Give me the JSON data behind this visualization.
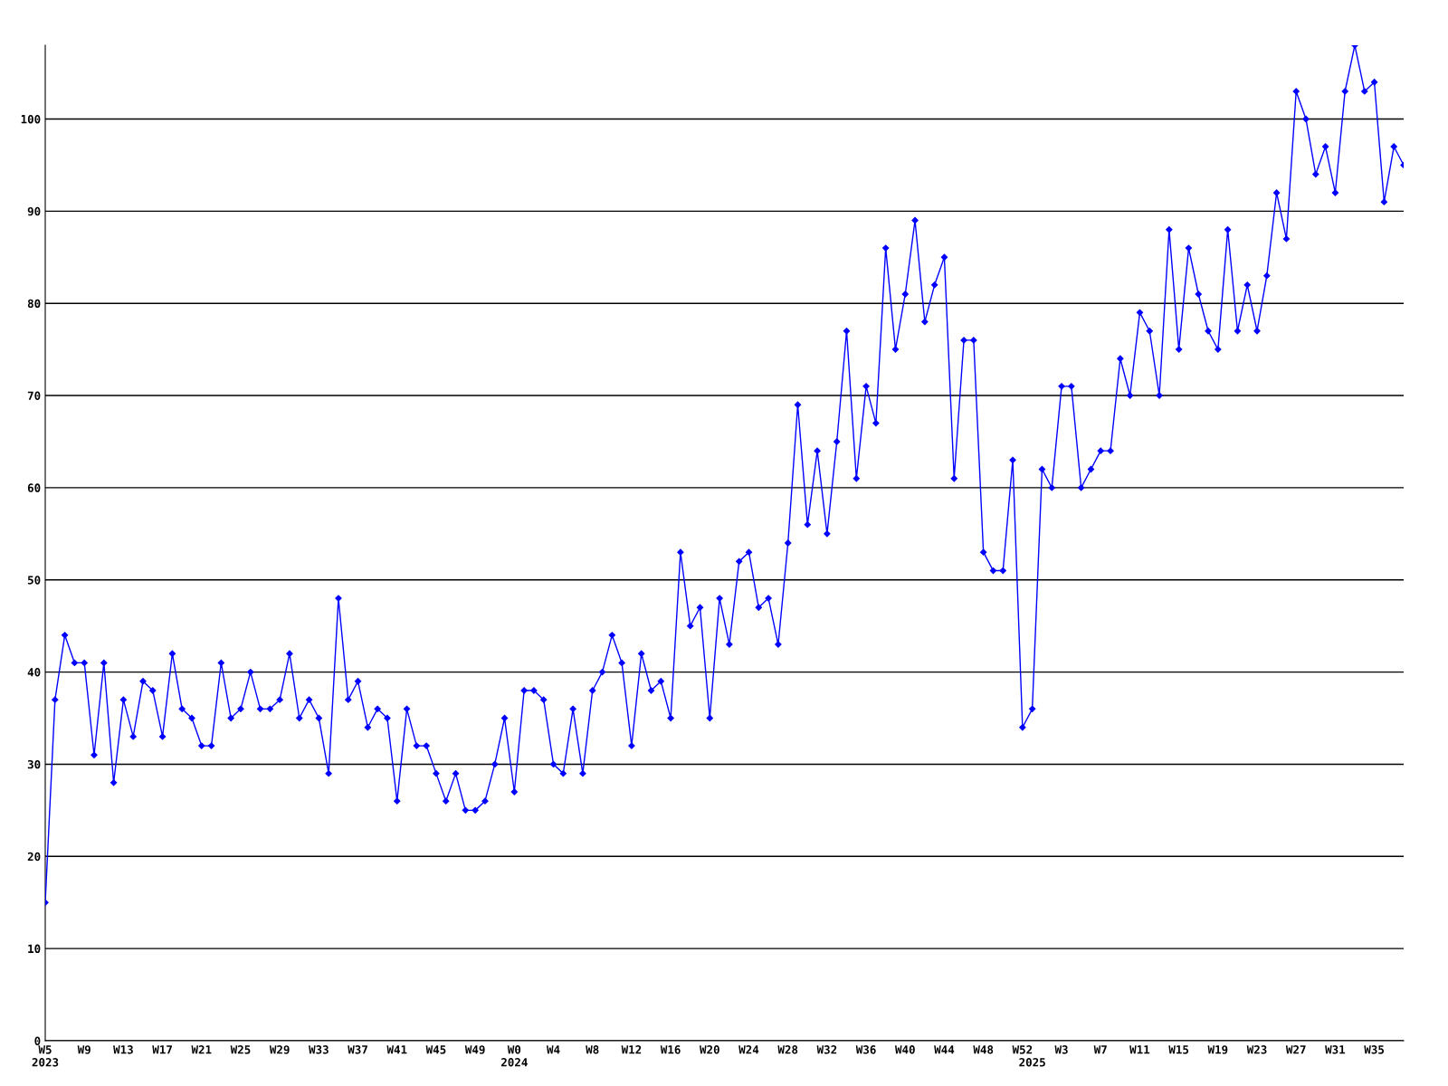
{
  "chart_data": {
    "type": "line",
    "categories": [
      "W5\n2023",
      null,
      null,
      null,
      "W9",
      null,
      null,
      null,
      "W13",
      null,
      null,
      null,
      "W17",
      null,
      null,
      null,
      "W21",
      null,
      null,
      null,
      "W25",
      null,
      null,
      null,
      "W29",
      null,
      null,
      null,
      "W33",
      null,
      null,
      null,
      "W37",
      null,
      null,
      null,
      "W41",
      null,
      null,
      null,
      "W45",
      null,
      null,
      null,
      "W49",
      null,
      null,
      null,
      "W0\n2024",
      null,
      null,
      null,
      "W4",
      null,
      null,
      null,
      "W8",
      null,
      null,
      null,
      "W12",
      null,
      null,
      null,
      "W16",
      null,
      null,
      null,
      "W20",
      null,
      null,
      null,
      "W24",
      null,
      null,
      null,
      "W28",
      null,
      null,
      null,
      "W32",
      null,
      null,
      null,
      "W36",
      null,
      null,
      null,
      "W40",
      null,
      null,
      null,
      "W44",
      null,
      null,
      null,
      "W48",
      null,
      null,
      null,
      "W52",
      "\n2025",
      null,
      null,
      "W3",
      null,
      null,
      null,
      "W7",
      null,
      null,
      null,
      "W11",
      null,
      null,
      null,
      "W15",
      null,
      null,
      null,
      "W19",
      null,
      null,
      null,
      "W23",
      null,
      null,
      null,
      "W27",
      null,
      null,
      null,
      "W31",
      null,
      null,
      null,
      "W35",
      null,
      null,
      null
    ],
    "series": [
      {
        "color": "#0000ff",
        "values": [
          15,
          37,
          44,
          41,
          41,
          31,
          41,
          28,
          37,
          33,
          39,
          38,
          33,
          42,
          36,
          35,
          32,
          32,
          41,
          35,
          36,
          40,
          36,
          36,
          37,
          42,
          35,
          37,
          35,
          29,
          48,
          37,
          39,
          34,
          36,
          35,
          26,
          36,
          32,
          32,
          29,
          26,
          29,
          25,
          25,
          26,
          30,
          35,
          27,
          38,
          38,
          37,
          30,
          29,
          36,
          29,
          38,
          40,
          44,
          41,
          32,
          42,
          38,
          39,
          35,
          53,
          45,
          47,
          35,
          48,
          43,
          52,
          53,
          47,
          48,
          43,
          54,
          69,
          56,
          64,
          55,
          65,
          77,
          61,
          71,
          67,
          86,
          75,
          81,
          89,
          78,
          82,
          85,
          61,
          76,
          76,
          53,
          51,
          51,
          63,
          34,
          36,
          62,
          60,
          71,
          71,
          60,
          62,
          64,
          64,
          74,
          70,
          79,
          77,
          70,
          88,
          75,
          86,
          81,
          77,
          75,
          88,
          77,
          82,
          77,
          83,
          92,
          87,
          103,
          100,
          94,
          97,
          92,
          103,
          108,
          103,
          104,
          91,
          97,
          95
        ]
      }
    ],
    "ylim": [
      0,
      108
    ],
    "yticks": [
      0,
      10,
      20,
      30,
      40,
      50,
      60,
      70,
      80,
      90,
      100
    ],
    "grid": "y",
    "marker": "diamond",
    "line_style": "solid",
    "legend": false
  }
}
